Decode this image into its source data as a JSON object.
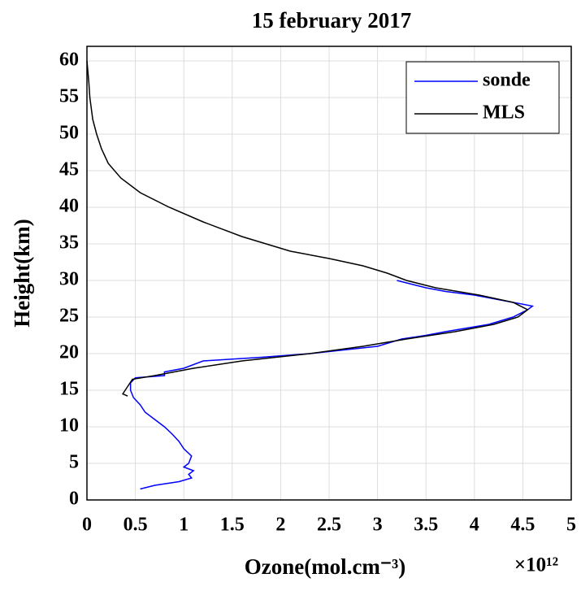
{
  "chart_data": {
    "type": "line",
    "title": "15 february 2017",
    "xlabel": "Ozone(mol.cm⁻³)",
    "x_multiplier": "×10¹²",
    "ylabel": "Height(km)",
    "xlim": [
      0,
      5
    ],
    "xticks": [
      0,
      0.5,
      1,
      1.5,
      2,
      2.5,
      3,
      3.5,
      4,
      4.5,
      5
    ],
    "ylim": [
      0,
      62
    ],
    "yticks": [
      0,
      5,
      10,
      15,
      20,
      25,
      30,
      35,
      40,
      45,
      50,
      55,
      60
    ],
    "grid": true,
    "legend": "upper right",
    "series": [
      {
        "name": "sonde",
        "color": "#0000ff",
        "x": [
          0.55,
          0.7,
          0.95,
          1.08,
          1.05,
          1.1,
          1.0,
          1.05,
          1.08,
          1.0,
          0.95,
          0.88,
          0.8,
          0.7,
          0.6,
          0.55,
          0.48,
          0.45,
          0.45,
          0.5,
          0.8,
          0.8,
          1.0,
          1.2,
          1.8,
          2.3,
          3.0,
          3.25,
          3.5,
          3.7,
          4.15,
          4.4,
          4.55,
          4.6,
          4.4,
          4.0,
          3.7,
          3.5,
          3.2
        ],
        "y": [
          1.5,
          2,
          2.5,
          3,
          3.5,
          4,
          4.5,
          5,
          6,
          7,
          8,
          9,
          10,
          11,
          12,
          13,
          14,
          15,
          16,
          16.7,
          17,
          17.5,
          18,
          19,
          19.5,
          20,
          21,
          22,
          22.5,
          23,
          24,
          25,
          26,
          26.5,
          27,
          28,
          28.5,
          29,
          30
        ]
      },
      {
        "name": "MLS",
        "color": "#000000",
        "x": [
          0.42,
          0.37,
          0.47,
          0.7,
          1.1,
          1.6,
          2.3,
          2.85,
          3.3,
          3.8,
          4.2,
          4.45,
          4.55,
          4.4,
          4.05,
          3.6,
          3.3,
          3.1,
          2.85,
          2.5,
          2.1,
          1.6,
          1.2,
          0.85,
          0.55,
          0.35,
          0.22,
          0.15,
          0.1,
          0.06,
          0.03,
          0.02,
          0.0
        ],
        "y": [
          14.2,
          14.5,
          16.5,
          17,
          18,
          19,
          20,
          21,
          22,
          23,
          24,
          25,
          26,
          27,
          28,
          29,
          30,
          31,
          32,
          33,
          34,
          36,
          38,
          40,
          42,
          44,
          46,
          48,
          50,
          52,
          55,
          57,
          60
        ]
      }
    ]
  }
}
